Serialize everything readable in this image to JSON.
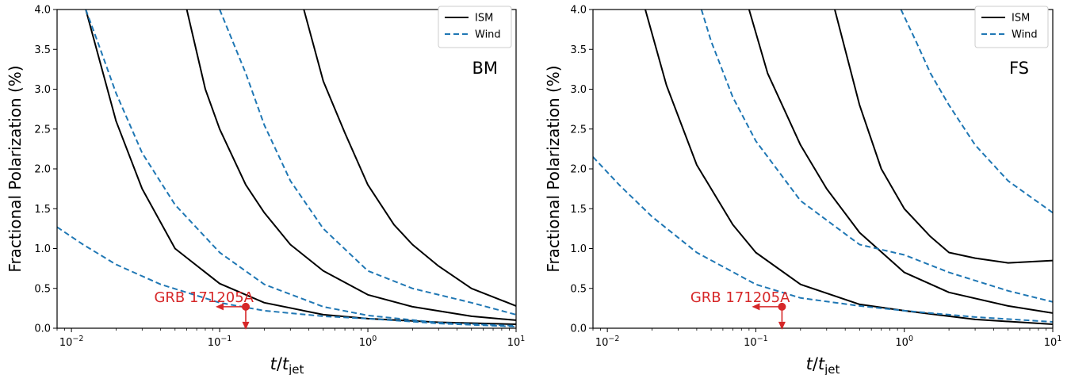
{
  "chart_data": [
    {
      "type": "line",
      "panel_label": "BM",
      "xscale": "log",
      "xlim": [
        0.008,
        10
      ],
      "ylim": [
        0,
        4.0
      ],
      "xlabel": "t/t_jet",
      "xlabel_parts": {
        "var": "t",
        "slash": "/",
        "base": "t",
        "sub": "jet"
      },
      "ylabel": "Fractional Polarization (%)",
      "xticks": [
        {
          "value": 0.01,
          "base": "10",
          "exp": "−2"
        },
        {
          "value": 0.1,
          "base": "10",
          "exp": "−1"
        },
        {
          "value": 1,
          "base": "10",
          "exp": "0"
        },
        {
          "value": 10,
          "base": "10",
          "exp": "1"
        }
      ],
      "yticks": [
        "0.0",
        "0.5",
        "1.0",
        "1.5",
        "2.0",
        "2.5",
        "3.0",
        "3.5",
        "4.0"
      ],
      "legend": {
        "position": "top-right",
        "entries": [
          {
            "label": "ISM",
            "style": "solid",
            "color": "#000000"
          },
          {
            "label": "Wind",
            "style": "dashed",
            "color": "#1f77b4"
          }
        ]
      },
      "series": [
        {
          "style": "solid",
          "color": "#000000",
          "points": [
            [
              0.0125,
              4.0
            ],
            [
              0.02,
              2.6
            ],
            [
              0.03,
              1.75
            ],
            [
              0.05,
              1.0
            ],
            [
              0.1,
              0.56
            ],
            [
              0.2,
              0.32
            ],
            [
              0.5,
              0.17
            ],
            [
              1,
              0.12
            ],
            [
              3,
              0.075
            ],
            [
              10,
              0.05
            ]
          ]
        },
        {
          "style": "solid",
          "color": "#000000",
          "points": [
            [
              0.06,
              4.0
            ],
            [
              0.08,
              3.0
            ],
            [
              0.1,
              2.5
            ],
            [
              0.15,
              1.8
            ],
            [
              0.2,
              1.45
            ],
            [
              0.3,
              1.05
            ],
            [
              0.5,
              0.72
            ],
            [
              1,
              0.42
            ],
            [
              2,
              0.27
            ],
            [
              5,
              0.15
            ],
            [
              10,
              0.1
            ]
          ]
        },
        {
          "style": "solid",
          "color": "#000000",
          "points": [
            [
              0.37,
              4.0
            ],
            [
              0.5,
              3.1
            ],
            [
              0.7,
              2.45
            ],
            [
              1,
              1.8
            ],
            [
              1.5,
              1.3
            ],
            [
              2,
              1.05
            ],
            [
              3,
              0.78
            ],
            [
              5,
              0.5
            ],
            [
              10,
              0.28
            ]
          ]
        },
        {
          "style": "dashed",
          "color": "#1f77b4",
          "points": [
            [
              0.0125,
              4.0
            ],
            [
              0.015,
              3.6
            ],
            [
              0.02,
              2.95
            ],
            [
              0.03,
              2.2
            ],
            [
              0.05,
              1.55
            ],
            [
              0.1,
              0.95
            ],
            [
              0.2,
              0.55
            ],
            [
              0.5,
              0.27
            ],
            [
              1,
              0.16
            ],
            [
              3,
              0.07
            ],
            [
              10,
              0.03
            ]
          ]
        },
        {
          "style": "dashed",
          "color": "#1f77b4",
          "points": [
            [
              0.1,
              4.0
            ],
            [
              0.15,
              3.2
            ],
            [
              0.2,
              2.55
            ],
            [
              0.3,
              1.85
            ],
            [
              0.5,
              1.25
            ],
            [
              1,
              0.72
            ],
            [
              2,
              0.5
            ],
            [
              5,
              0.32
            ],
            [
              10,
              0.17
            ]
          ]
        },
        {
          "style": "dashed",
          "color": "#1f77b4",
          "points": [
            [
              0.008,
              1.27
            ],
            [
              0.012,
              1.05
            ],
            [
              0.02,
              0.8
            ],
            [
              0.04,
              0.55
            ],
            [
              0.1,
              0.32
            ],
            [
              0.2,
              0.22
            ],
            [
              0.5,
              0.15
            ],
            [
              1,
              0.12
            ],
            [
              3,
              0.06
            ],
            [
              10,
              0.02
            ]
          ]
        }
      ],
      "annotation": {
        "label": "GRB 171205A",
        "color": "#d62728",
        "x": 0.15,
        "y": 0.27,
        "arrows": [
          "left",
          "down"
        ]
      }
    },
    {
      "type": "line",
      "panel_label": "FS",
      "xscale": "log",
      "xlim": [
        0.008,
        10
      ],
      "ylim": [
        0,
        4.0
      ],
      "xlabel": "t/t_jet",
      "xlabel_parts": {
        "var": "t",
        "slash": "/",
        "base": "t",
        "sub": "jet"
      },
      "ylabel": "Fractional Polarization (%)",
      "xticks": [
        {
          "value": 0.01,
          "base": "10",
          "exp": "−2"
        },
        {
          "value": 0.1,
          "base": "10",
          "exp": "−1"
        },
        {
          "value": 1,
          "base": "10",
          "exp": "0"
        },
        {
          "value": 10,
          "base": "10",
          "exp": "1"
        }
      ],
      "yticks": [
        "0.0",
        "0.5",
        "1.0",
        "1.5",
        "2.0",
        "2.5",
        "3.0",
        "3.5",
        "4.0"
      ],
      "legend": {
        "position": "top-right",
        "entries": [
          {
            "label": "ISM",
            "style": "solid",
            "color": "#000000"
          },
          {
            "label": "Wind",
            "style": "dashed",
            "color": "#1f77b4"
          }
        ]
      },
      "series": [
        {
          "style": "solid",
          "color": "#000000",
          "points": [
            [
              0.018,
              4.0
            ],
            [
              0.025,
              3.05
            ],
            [
              0.04,
              2.05
            ],
            [
              0.07,
              1.3
            ],
            [
              0.1,
              0.95
            ],
            [
              0.2,
              0.55
            ],
            [
              0.5,
              0.3
            ],
            [
              1,
              0.22
            ],
            [
              3,
              0.11
            ],
            [
              10,
              0.05
            ]
          ]
        },
        {
          "style": "solid",
          "color": "#000000",
          "points": [
            [
              0.09,
              4.0
            ],
            [
              0.12,
              3.2
            ],
            [
              0.2,
              2.3
            ],
            [
              0.3,
              1.75
            ],
            [
              0.5,
              1.2
            ],
            [
              1,
              0.7
            ],
            [
              2,
              0.45
            ],
            [
              5,
              0.28
            ],
            [
              10,
              0.19
            ]
          ]
        },
        {
          "style": "solid",
          "color": "#000000",
          "points": [
            [
              0.34,
              4.0
            ],
            [
              0.5,
              2.8
            ],
            [
              0.7,
              2.0
            ],
            [
              1,
              1.5
            ],
            [
              1.5,
              1.15
            ],
            [
              2,
              0.95
            ],
            [
              3,
              0.88
            ],
            [
              5,
              0.82
            ],
            [
              10,
              0.85
            ]
          ]
        },
        {
          "style": "dashed",
          "color": "#1f77b4",
          "points": [
            [
              0.008,
              2.15
            ],
            [
              0.012,
              1.8
            ],
            [
              0.02,
              1.4
            ],
            [
              0.04,
              0.95
            ],
            [
              0.1,
              0.55
            ],
            [
              0.2,
              0.38
            ],
            [
              0.5,
              0.28
            ],
            [
              1,
              0.22
            ],
            [
              3,
              0.14
            ],
            [
              10,
              0.08
            ]
          ]
        },
        {
          "style": "dashed",
          "color": "#1f77b4",
          "points": [
            [
              0.043,
              4.0
            ],
            [
              0.05,
              3.6
            ],
            [
              0.07,
              2.9
            ],
            [
              0.1,
              2.35
            ],
            [
              0.2,
              1.6
            ],
            [
              0.5,
              1.05
            ],
            [
              1,
              0.92
            ],
            [
              2,
              0.7
            ],
            [
              5,
              0.47
            ],
            [
              10,
              0.33
            ]
          ]
        },
        {
          "style": "dashed",
          "color": "#1f77b4",
          "points": [
            [
              0.95,
              4.0
            ],
            [
              1.2,
              3.6
            ],
            [
              1.5,
              3.2
            ],
            [
              2,
              2.8
            ],
            [
              3,
              2.3
            ],
            [
              5,
              1.85
            ],
            [
              10,
              1.45
            ]
          ]
        }
      ],
      "annotation": {
        "label": "GRB 171205A",
        "color": "#d62728",
        "x": 0.15,
        "y": 0.27,
        "arrows": [
          "left",
          "down"
        ]
      }
    }
  ]
}
